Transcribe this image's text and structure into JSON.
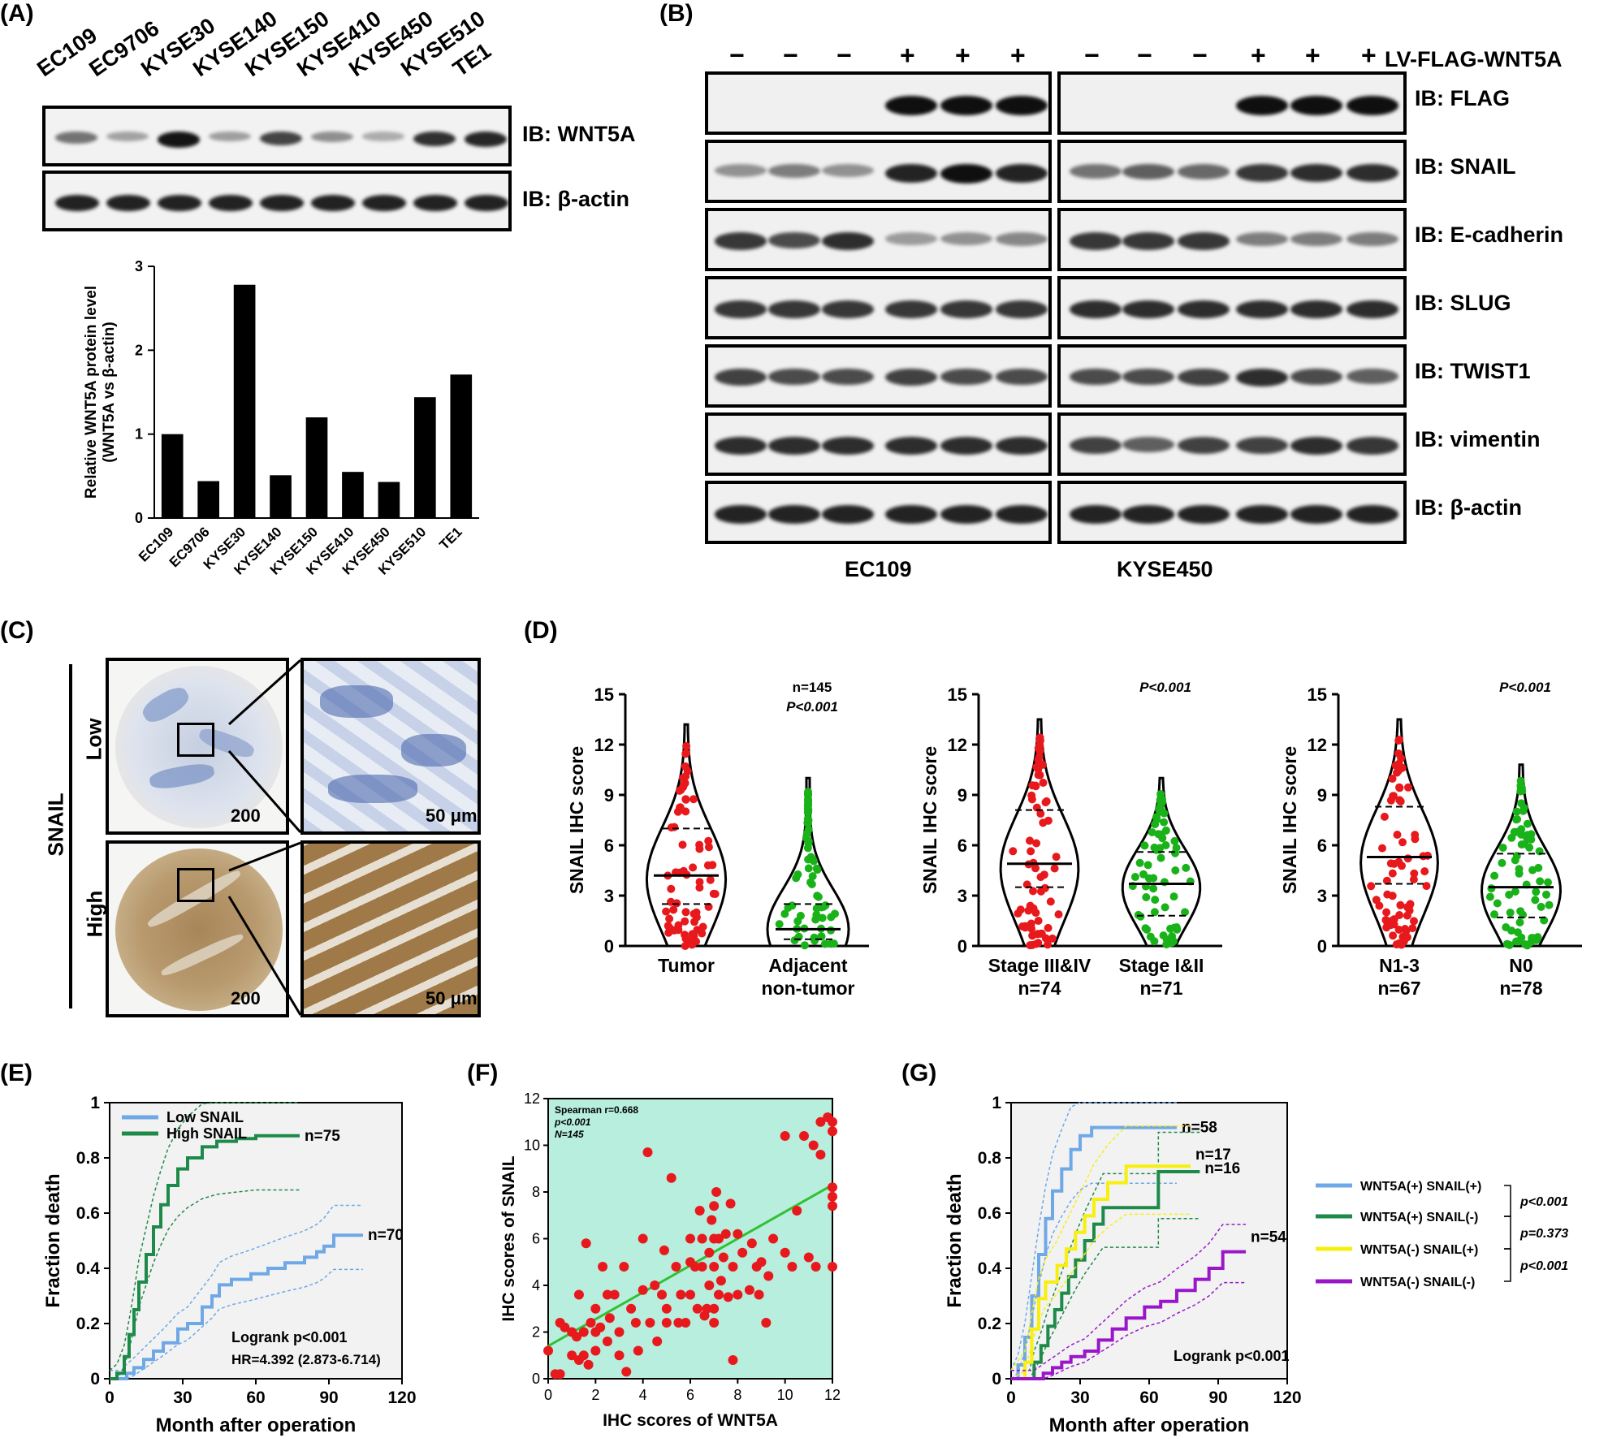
{
  "panels": {
    "A": "(A)",
    "B": "(B)",
    "C": "(C)",
    "D": "(D)",
    "E": "(E)",
    "F": "(F)",
    "G": "(G)"
  },
  "panel_a": {
    "cell_lines": [
      "EC109",
      "EC9706",
      "KYSE30",
      "KYSE140",
      "KYSE150",
      "KYSE410",
      "KYSE450",
      "KYSE510",
      "TE1"
    ],
    "blot_labels": [
      "IB: WNT5A",
      "IB: β-actin"
    ],
    "wnt5a_intensity": [
      0.45,
      0.2,
      0.95,
      0.22,
      0.7,
      0.3,
      0.15,
      0.8,
      0.85
    ]
  },
  "panel_b": {
    "signs": [
      "−",
      "−",
      "−",
      "+",
      "+",
      "+",
      "−",
      "−",
      "−",
      "+",
      "+",
      "+"
    ],
    "construct": "LV-FLAG-WNT5A",
    "blot_labels": [
      "IB: FLAG",
      "IB: SNAIL",
      "IB: E-cadherin",
      "IB: SLUG",
      "IB: TWIST1",
      "IB: vimentin",
      "IB: β-actin"
    ],
    "groups": [
      "EC109",
      "KYSE450"
    ]
  },
  "panel_c": {
    "marker": "SNAIL",
    "rows": [
      "Low",
      "High"
    ],
    "scale_200": "200 μm",
    "scale_50": "50 μm"
  },
  "chart_data": [
    {
      "type": "bar",
      "title": "",
      "categories": [
        "EC109",
        "EC9706",
        "KYSE30",
        "KYSE140",
        "KYSE150",
        "KYSE410",
        "KYSE450",
        "KYSE510",
        "TE1"
      ],
      "values": [
        1.0,
        0.44,
        2.78,
        0.51,
        1.2,
        0.55,
        0.43,
        1.44,
        1.71
      ],
      "ylabel": "Relative WNT5A protein level (WNT5A vs β-actin)",
      "ylabel_lines": [
        "Relative WNT5A protein level",
        "(WNT5A vs β-actin)"
      ],
      "ylim": [
        0,
        3
      ],
      "yticks": [
        0,
        1,
        2,
        3
      ]
    },
    {
      "type": "violin",
      "ylabel": "SNAIL IHC score",
      "ylim": [
        0,
        15
      ],
      "yticks": [
        0,
        3,
        6,
        9,
        12,
        15
      ],
      "groups": [
        {
          "label": [
            "Tumor"
          ],
          "median": 4.2,
          "q1": 2.5,
          "q3": 7.0,
          "max": 13.2,
          "color": "#e8191c"
        },
        {
          "label": [
            "Adjacent",
            "non-tumor"
          ],
          "median": 1.0,
          "q1": 0.4,
          "q3": 2.5,
          "max": 10.0,
          "color": "#19b219"
        }
      ],
      "annotations": [
        "n=145",
        "P<0.001"
      ]
    },
    {
      "type": "violin",
      "ylabel": "SNAIL IHC score",
      "ylim": [
        0,
        15
      ],
      "yticks": [
        0,
        3,
        6,
        9,
        12,
        15
      ],
      "groups": [
        {
          "label": [
            "Stage III&IV",
            "n=74"
          ],
          "median": 4.9,
          "q1": 3.5,
          "q3": 8.1,
          "max": 13.5,
          "color": "#e8191c"
        },
        {
          "label": [
            "Stage I&II",
            "n=71"
          ],
          "median": 3.7,
          "q1": 1.8,
          "q3": 5.6,
          "max": 10.0,
          "color": "#19b219"
        }
      ],
      "annotations": [
        "P<0.001"
      ]
    },
    {
      "type": "violin",
      "ylabel": "SNAIL IHC score",
      "ylim": [
        0,
        15
      ],
      "yticks": [
        0,
        3,
        6,
        9,
        12,
        15
      ],
      "groups": [
        {
          "label": [
            "N1-3",
            "n=67"
          ],
          "median": 5.3,
          "q1": 3.7,
          "q3": 8.3,
          "max": 13.5,
          "color": "#e8191c"
        },
        {
          "label": [
            "N0",
            "n=78"
          ],
          "median": 3.5,
          "q1": 1.7,
          "q3": 5.5,
          "max": 10.8,
          "color": "#19b219"
        }
      ],
      "annotations": [
        "P<0.001"
      ]
    },
    {
      "type": "line",
      "xlabel": "Month after operation",
      "ylabel": "Fraction death",
      "xlim": [
        0,
        120
      ],
      "ylim": [
        0,
        1.0
      ],
      "xticks": [
        0,
        30,
        60,
        90,
        120
      ],
      "yticks": [
        0.0,
        0.2,
        0.4,
        0.6,
        0.8,
        1.0
      ],
      "series": [
        {
          "name": "Low SNAIL",
          "color": "#6fa8e6",
          "end_label": "n=70",
          "points": [
            [
              0,
              0
            ],
            [
              5,
              0
            ],
            [
              7,
              0.02
            ],
            [
              10,
              0.04
            ],
            [
              14,
              0.07
            ],
            [
              18,
              0.1
            ],
            [
              22,
              0.13
            ],
            [
              28,
              0.18
            ],
            [
              32,
              0.2
            ],
            [
              38,
              0.26
            ],
            [
              42,
              0.3
            ],
            [
              45,
              0.34
            ],
            [
              50,
              0.36
            ],
            [
              58,
              0.38
            ],
            [
              65,
              0.4
            ],
            [
              72,
              0.42
            ],
            [
              80,
              0.44
            ],
            [
              85,
              0.46
            ],
            [
              88,
              0.48
            ],
            [
              92,
              0.52
            ],
            [
              104,
              0.52
            ]
          ]
        },
        {
          "name": "High SNAIL",
          "color": "#1e8a4a",
          "end_label": "n=75",
          "points": [
            [
              0,
              0
            ],
            [
              3,
              0.02
            ],
            [
              6,
              0.08
            ],
            [
              8,
              0.16
            ],
            [
              10,
              0.25
            ],
            [
              12,
              0.35
            ],
            [
              15,
              0.45
            ],
            [
              18,
              0.55
            ],
            [
              21,
              0.63
            ],
            [
              24,
              0.7
            ],
            [
              28,
              0.76
            ],
            [
              32,
              0.8
            ],
            [
              38,
              0.84
            ],
            [
              44,
              0.86
            ],
            [
              52,
              0.87
            ],
            [
              60,
              0.88
            ],
            [
              70,
              0.88
            ],
            [
              78,
              0.88
            ]
          ]
        }
      ],
      "annotations": [
        "Logrank p<0.001",
        "HR=4.392 (2.873-6.714)"
      ]
    },
    {
      "type": "scatter",
      "xlabel": "IHC scores of WNT5A",
      "ylabel": "IHC scores of SNAIL",
      "xlim": [
        0,
        12
      ],
      "ylim": [
        0,
        12
      ],
      "xticks": [
        0,
        2,
        4,
        6,
        8,
        10,
        12
      ],
      "yticks": [
        0,
        2,
        4,
        6,
        8,
        10,
        12
      ],
      "annotations": [
        "Spearman r=0.668",
        "p<0.001",
        "N=145"
      ],
      "fit": [
        [
          0,
          1.4
        ],
        [
          12,
          8.3
        ]
      ],
      "points": [
        [
          0,
          1.2
        ],
        [
          0.3,
          0.2
        ],
        [
          0.5,
          0.2
        ],
        [
          0.5,
          2.4
        ],
        [
          0.7,
          2.2
        ],
        [
          1,
          1
        ],
        [
          1,
          2
        ],
        [
          1.2,
          1.8
        ],
        [
          1.3,
          0.8
        ],
        [
          1.3,
          3.6
        ],
        [
          1.5,
          1
        ],
        [
          1.5,
          2
        ],
        [
          1.6,
          5.8
        ],
        [
          1.7,
          0.6
        ],
        [
          1.8,
          2.4
        ],
        [
          2,
          1.2
        ],
        [
          2,
          2
        ],
        [
          2,
          3
        ],
        [
          2.2,
          2.2
        ],
        [
          2.3,
          4.8
        ],
        [
          2.5,
          3.6
        ],
        [
          2.5,
          1.6
        ],
        [
          2.6,
          2.6
        ],
        [
          2.8,
          3.6
        ],
        [
          3,
          1
        ],
        [
          3,
          2
        ],
        [
          3.2,
          4.8
        ],
        [
          3.3,
          0.3
        ],
        [
          3.5,
          3
        ],
        [
          3.7,
          2.4
        ],
        [
          3.8,
          1.2
        ],
        [
          4,
          3.8
        ],
        [
          4,
          6
        ],
        [
          4.2,
          9.7
        ],
        [
          4.3,
          2.4
        ],
        [
          4.5,
          4
        ],
        [
          4.6,
          1.6
        ],
        [
          4.8,
          3.6
        ],
        [
          4.9,
          5.5
        ],
        [
          5,
          3
        ],
        [
          5,
          2.4
        ],
        [
          5.2,
          8.6
        ],
        [
          5.4,
          4.8
        ],
        [
          5.5,
          2.4
        ],
        [
          5.6,
          3.6
        ],
        [
          5.8,
          2.4
        ],
        [
          6,
          3.6
        ],
        [
          6,
          5
        ],
        [
          6,
          6
        ],
        [
          6.2,
          4.8
        ],
        [
          6.3,
          3
        ],
        [
          6.4,
          7.2
        ],
        [
          6.5,
          4.8
        ],
        [
          6.5,
          6
        ],
        [
          6.6,
          2.7
        ],
        [
          6.7,
          3
        ],
        [
          6.8,
          4
        ],
        [
          6.8,
          5.4
        ],
        [
          6.9,
          6.8
        ],
        [
          7,
          2.4
        ],
        [
          7,
          3
        ],
        [
          7,
          4.8
        ],
        [
          7,
          6
        ],
        [
          7,
          7.4
        ],
        [
          7.1,
          8
        ],
        [
          7.2,
          3.6
        ],
        [
          7.2,
          6
        ],
        [
          7.3,
          4.2
        ],
        [
          7.4,
          5.2
        ],
        [
          7.5,
          6.2
        ],
        [
          7.6,
          3.5
        ],
        [
          7.7,
          7.5
        ],
        [
          7.8,
          4.8
        ],
        [
          7.8,
          0.8
        ],
        [
          8,
          3.6
        ],
        [
          8,
          6.2
        ],
        [
          8.2,
          5.4
        ],
        [
          8.5,
          3.8
        ],
        [
          8.6,
          5.8
        ],
        [
          8.8,
          4.8
        ],
        [
          8.9,
          3.6
        ],
        [
          9,
          5
        ],
        [
          9.2,
          2.4
        ],
        [
          9.3,
          4.4
        ],
        [
          9.5,
          6
        ],
        [
          10,
          5.4
        ],
        [
          10,
          10.4
        ],
        [
          10.3,
          4.8
        ],
        [
          10.5,
          7.2
        ],
        [
          10.8,
          10.4
        ],
        [
          11,
          5.2
        ],
        [
          11.2,
          10
        ],
        [
          11.3,
          4.8
        ],
        [
          11.5,
          11
        ],
        [
          11.5,
          9.6
        ],
        [
          11.8,
          11.2
        ],
        [
          12,
          11
        ],
        [
          12,
          10.6
        ],
        [
          12,
          8.2
        ],
        [
          12,
          7.8
        ],
        [
          12,
          7.4
        ],
        [
          12,
          4.8
        ]
      ]
    },
    {
      "type": "line",
      "xlabel": "Month after operation",
      "ylabel": "Fraction death",
      "xlim": [
        0,
        120
      ],
      "ylim": [
        0,
        1.0
      ],
      "xticks": [
        0,
        30,
        60,
        90,
        120
      ],
      "yticks": [
        0.0,
        0.2,
        0.4,
        0.6,
        0.8,
        1.0
      ],
      "series": [
        {
          "name": "WNT5A(+) SNAIL(+)",
          "color": "#6fa8e6",
          "end_label": "n=58",
          "points": [
            [
              0,
              0
            ],
            [
              3,
              0.05
            ],
            [
              6,
              0.15
            ],
            [
              9,
              0.3
            ],
            [
              12,
              0.45
            ],
            [
              15,
              0.58
            ],
            [
              18,
              0.68
            ],
            [
              22,
              0.76
            ],
            [
              26,
              0.83
            ],
            [
              30,
              0.88
            ],
            [
              35,
              0.91
            ],
            [
              45,
              0.91
            ],
            [
              60,
              0.91
            ],
            [
              72,
              0.91
            ]
          ]
        },
        {
          "name": "WNT5A(+) SNAIL(-)",
          "color": "#1e8a4a",
          "end_label": "n=16",
          "points": [
            [
              0,
              0
            ],
            [
              8,
              0
            ],
            [
              10,
              0.06
            ],
            [
              13,
              0.12
            ],
            [
              16,
              0.19
            ],
            [
              19,
              0.25
            ],
            [
              22,
              0.31
            ],
            [
              25,
              0.37
            ],
            [
              28,
              0.43
            ],
            [
              32,
              0.5
            ],
            [
              36,
              0.56
            ],
            [
              40,
              0.62
            ],
            [
              50,
              0.62
            ],
            [
              64,
              0.62
            ],
            [
              64,
              0.75
            ],
            [
              82,
              0.75
            ]
          ]
        },
        {
          "name": "WNT5A(-) SNAIL(+)",
          "color": "#f7ef0d",
          "end_label": "n=17",
          "points": [
            [
              0,
              0
            ],
            [
              6,
              0.06
            ],
            [
              9,
              0.18
            ],
            [
              12,
              0.29
            ],
            [
              15,
              0.35
            ],
            [
              20,
              0.41
            ],
            [
              24,
              0.47
            ],
            [
              28,
              0.53
            ],
            [
              32,
              0.59
            ],
            [
              36,
              0.65
            ],
            [
              42,
              0.71
            ],
            [
              50,
              0.77
            ],
            [
              60,
              0.77
            ],
            [
              78,
              0.77
            ]
          ]
        },
        {
          "name": "WNT5A(-) SNAIL(-)",
          "color": "#9a17c9",
          "end_label": "n=54",
          "points": [
            [
              0,
              0
            ],
            [
              10,
              0
            ],
            [
              14,
              0.02
            ],
            [
              18,
              0.04
            ],
            [
              22,
              0.06
            ],
            [
              26,
              0.08
            ],
            [
              32,
              0.1
            ],
            [
              38,
              0.14
            ],
            [
              44,
              0.18
            ],
            [
              50,
              0.22
            ],
            [
              58,
              0.26
            ],
            [
              65,
              0.28
            ],
            [
              72,
              0.32
            ],
            [
              80,
              0.36
            ],
            [
              86,
              0.4
            ],
            [
              92,
              0.46
            ],
            [
              102,
              0.46
            ]
          ]
        }
      ],
      "annotations": [
        "Logrank p<0.001"
      ],
      "comparisons": [
        "p<0.001",
        "p=0.373",
        "p<0.001"
      ]
    }
  ]
}
